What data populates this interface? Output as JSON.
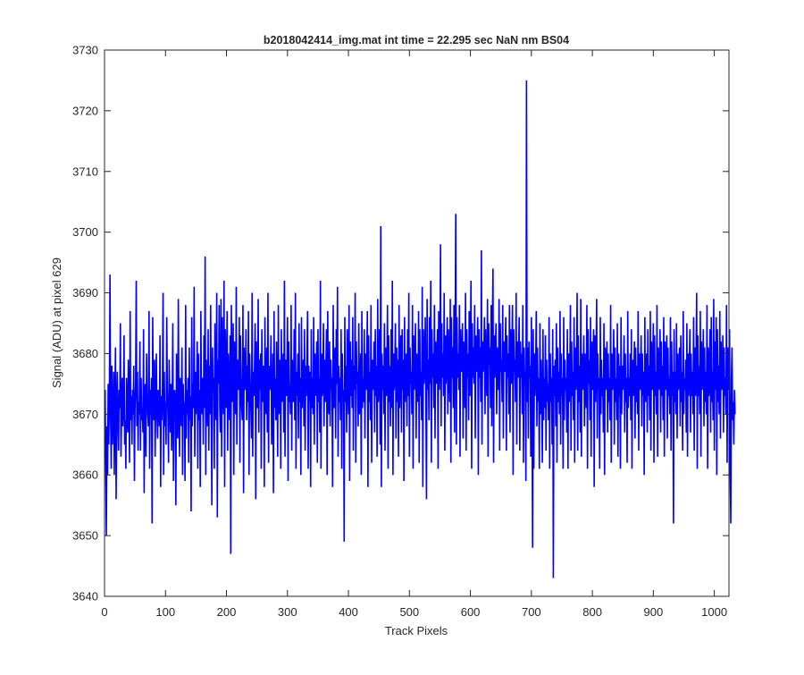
{
  "chart_data": {
    "type": "line",
    "title": "b2018042414_img.mat int time = 22.295 sec  NaN nm BS04",
    "xlabel": "Track Pixels",
    "ylabel": "Signal (ADU) at pixel 629",
    "xlim": [
      0,
      1024
    ],
    "ylim": [
      3640,
      3730
    ],
    "xticks": [
      0,
      100,
      200,
      300,
      400,
      500,
      600,
      700,
      800,
      900,
      1000
    ],
    "yticks": [
      3640,
      3650,
      3660,
      3670,
      3680,
      3690,
      3700,
      3710,
      3720,
      3730
    ],
    "grid": false,
    "line_color": "#0000ff",
    "series": [
      {
        "name": "",
        "x_start": 1,
        "x_step": 1,
        "values": [
          3674,
          3662,
          3650,
          3668,
          3660,
          3675,
          3665,
          3673,
          3693,
          3669,
          3661,
          3678,
          3665,
          3670,
          3677,
          3660,
          3672,
          3681,
          3656,
          3670,
          3677,
          3668,
          3664,
          3674,
          3671,
          3685,
          3663,
          3670,
          3676,
          3668,
          3671,
          3683,
          3665,
          3669,
          3661,
          3676,
          3672,
          3667,
          3679,
          3672,
          3662,
          3687,
          3669,
          3673,
          3665,
          3674,
          3670,
          3678,
          3659,
          3671,
          3675,
          3692,
          3668,
          3677,
          3664,
          3672,
          3670,
          3682,
          3664,
          3676,
          3669,
          3671,
          3667,
          3684,
          3657,
          3673,
          3675,
          3663,
          3680,
          3672,
          3670,
          3668,
          3687,
          3661,
          3674,
          3670,
          3676,
          3652,
          3686,
          3672,
          3669,
          3679,
          3663,
          3672,
          3680,
          3670,
          3666,
          3674,
          3671,
          3668,
          3683,
          3658,
          3673,
          3669,
          3675,
          3690,
          3660,
          3677,
          3668,
          3672,
          3665,
          3686,
          3674,
          3670,
          3662,
          3679,
          3672,
          3667,
          3675,
          3664,
          3671,
          3685,
          3659,
          3673,
          3674,
          3672,
          3655,
          3680,
          3670,
          3666,
          3689,
          3671,
          3663,
          3676,
          3672,
          3668,
          3681,
          3660,
          3675,
          3670,
          3672,
          3659,
          3688,
          3666,
          3674,
          3670,
          3676,
          3662,
          3681,
          3669,
          3673,
          3654,
          3686,
          3668,
          3675,
          3671,
          3691,
          3663,
          3677,
          3670,
          3673,
          3682,
          3661,
          3680,
          3669,
          3674,
          3658,
          3687,
          3672,
          3670,
          3676,
          3665,
          3683,
          3671,
          3696,
          3660,
          3679,
          3673,
          3668,
          3684,
          3664,
          3678,
          3670,
          3688,
          3672,
          3655,
          3681,
          3674,
          3676,
          3661,
          3685,
          3672,
          3669,
          3690,
          3653,
          3679,
          3675,
          3688,
          3671,
          3667,
          3689,
          3663,
          3686,
          3674,
          3670,
          3692,
          3658,
          3684,
          3677,
          3671,
          3687,
          3664,
          3680,
          3675,
          3669,
          3683,
          3647,
          3688,
          3676,
          3672,
          3685,
          3660,
          3682,
          3677,
          3670,
          3691,
          3665,
          3679,
          3676,
          3674,
          3686,
          3662,
          3683,
          3675,
          3671,
          3669,
          3688,
          3657,
          3681,
          3676,
          3674,
          3684,
          3669,
          3678,
          3672,
          3687,
          3660,
          3680,
          3675,
          3671,
          3666,
          3690,
          3663,
          3677,
          3673,
          3678,
          3685,
          3656,
          3682,
          3674,
          3671,
          3689,
          3667,
          3679,
          3674,
          3680,
          3661,
          3684,
          3672,
          3675,
          3678,
          3658,
          3686,
          3673,
          3670,
          3681,
          3667,
          3690,
          3662,
          3678,
          3674,
          3676,
          3683,
          3665,
          3672,
          3680,
          3657,
          3687,
          3671,
          3676,
          3669,
          3682,
          3674,
          3663,
          3688,
          3670,
          3676,
          3679,
          3661,
          3684,
          3672,
          3674,
          3680,
          3667,
          3692,
          3663,
          3679,
          3673,
          3676,
          3686,
          3659,
          3682,
          3672,
          3675,
          3670,
          3688,
          3664,
          3679,
          3674,
          3672,
          3684,
          3669,
          3690,
          3661,
          3677,
          3673,
          3680,
          3666,
          3685,
          3672,
          3676,
          3660,
          3686,
          3671,
          3675,
          3679,
          3668,
          3684,
          3664,
          3678,
          3673,
          3680,
          3687,
          3661,
          3678,
          3672,
          3677,
          3658,
          3684,
          3671,
          3676,
          3670,
          3686,
          3665,
          3680,
          3673,
          3676,
          3682,
          3662,
          3684,
          3672,
          3676,
          3667,
          3692,
          3661,
          3680,
          3673,
          3675,
          3685,
          3668,
          3679,
          3672,
          3677,
          3684,
          3660,
          3687,
          3673,
          3670,
          3682,
          3668,
          3679,
          3674,
          3676,
          3658,
          3688,
          3673,
          3671,
          3681,
          3666,
          3684,
          3675,
          3691,
          3663,
          3678,
          3672,
          3676,
          3669,
          3684,
          3661,
          3680,
          3673,
          3674,
          3649,
          3686,
          3672,
          3678,
          3667,
          3684,
          3676,
          3670,
          3688,
          3659,
          3682,
          3673,
          3679,
          3671,
          3686,
          3664,
          3678,
          3674,
          3690,
          3662,
          3682,
          3675,
          3677,
          3668,
          3685,
          3670,
          3673,
          3680,
          3660,
          3687,
          3671,
          3676,
          3672,
          3684,
          3666,
          3680,
          3674,
          3678,
          3687,
          3658,
          3683,
          3672,
          3677,
          3669,
          3688,
          3662,
          3679,
          3674,
          3676,
          3682,
          3667,
          3684,
          3673,
          3678,
          3663,
          3689,
          3672,
          3676,
          3684,
          3665,
          3701,
          3658,
          3680,
          3674,
          3678,
          3670,
          3685,
          3664,
          3681,
          3673,
          3676,
          3688,
          3661,
          3683,
          3672,
          3678,
          3668,
          3684,
          3671,
          3692,
          3660,
          3680,
          3674,
          3677,
          3685,
          3666,
          3681,
          3672,
          3679,
          3663,
          3688,
          3671,
          3676,
          3683,
          3667,
          3684,
          3674,
          3679,
          3659,
          3686,
          3672,
          3676,
          3680,
          3668,
          3684,
          3673,
          3690,
          3663,
          3681,
          3675,
          3677,
          3670,
          3688,
          3661,
          3683,
          3674,
          3678,
          3685,
          3666,
          3680,
          3676,
          3672,
          3687,
          3662,
          3684,
          3673,
          3677,
          3669,
          3691,
          3658,
          3684,
          3675,
          3678,
          3686,
          3672,
          3656,
          3689,
          3674,
          3679,
          3669,
          3686,
          3675,
          3692,
          3662,
          3684,
          3676,
          3680,
          3671,
          3688,
          3666,
          3682,
          3675,
          3679,
          3684,
          3661,
          3687,
          3674,
          3678,
          3698,
          3668,
          3685,
          3676,
          3680,
          3673,
          3690,
          3664,
          3683,
          3675,
          3679,
          3686,
          3670,
          3684,
          3677,
          3672,
          3689,
          3662,
          3686,
          3676,
          3681,
          3671,
          3688,
          3667,
          3684,
          3703,
          3665,
          3686,
          3676,
          3680,
          3674,
          3688,
          3663,
          3684,
          3677,
          3679,
          3685,
          3666,
          3682,
          3677,
          3671,
          3690,
          3664,
          3684,
          3676,
          3680,
          3669,
          3687,
          3673,
          3682,
          3692,
          3661,
          3685,
          3676,
          3681,
          3675,
          3688,
          3666,
          3683,
          3677,
          3679,
          3686,
          3660,
          3684,
          3676,
          3681,
          3672,
          3697,
          3665,
          3682,
          3677,
          3680,
          3686,
          3670,
          3684,
          3676,
          3673,
          3689,
          3663,
          3685,
          3678,
          3681,
          3671,
          3688,
          3668,
          3684,
          3694,
          3662,
          3683,
          3676,
          3681,
          3685,
          3670,
          3681,
          3677,
          3674,
          3689,
          3664,
          3685,
          3677,
          3679,
          3672,
          3688,
          3666,
          3682,
          3677,
          3680,
          3686,
          3664,
          3683,
          3676,
          3680,
          3670,
          3688,
          3667,
          3684,
          3675,
          3680,
          3688,
          3660,
          3684,
          3677,
          3679,
          3672,
          3690,
          3665,
          3682,
          3676,
          3680,
          3686,
          3664,
          3682,
          3676,
          3680,
          3670,
          3688,
          3662,
          3681,
          3675,
          3677,
          3659,
          3725,
          3672,
          3681,
          3666,
          3682,
          3676,
          3678,
          3663,
          3686,
          3672,
          3648,
          3684,
          3661,
          3680,
          3673,
          3677,
          3687,
          3668,
          3681,
          3672,
          3676,
          3661,
          3685,
          3670,
          3679,
          3673,
          3662,
          3684,
          3669,
          3676,
          3671,
          3683,
          3664,
          3679,
          3672,
          3675,
          3669,
          3686,
          3661,
          3680,
          3672,
          3676,
          3665,
          3684,
          3643,
          3678,
          3673,
          3679,
          3668,
          3685,
          3662,
          3681,
          3672,
          3677,
          3670,
          3687,
          3665,
          3680,
          3673,
          3676,
          3661,
          3686,
          3669,
          3679,
          3674,
          3676,
          3667,
          3684,
          3661,
          3680,
          3672,
          3676,
          3688,
          3664,
          3682,
          3673,
          3677,
          3669,
          3686,
          3662,
          3681,
          3674,
          3678,
          3690,
          3664,
          3683,
          3672,
          3678,
          3667,
          3689,
          3663,
          3680,
          3674,
          3676,
          3683,
          3668,
          3680,
          3673,
          3671,
          3688,
          3661,
          3684,
          3675,
          3679,
          3669,
          3686,
          3663,
          3682,
          3674,
          3679,
          3684,
          3658,
          3683,
          3672,
          3678,
          3689,
          3666,
          3680,
          3674,
          3676,
          3661,
          3686,
          3670,
          3679,
          3673,
          3676,
          3667,
          3685,
          3660,
          3681,
          3674,
          3678,
          3682,
          3667,
          3680,
          3672,
          3676,
          3669,
          3688,
          3662,
          3680,
          3674,
          3677,
          3684,
          3665,
          3681,
          3672,
          3676,
          3669,
          3685,
          3663,
          3680,
          3673,
          3678,
          3661,
          3686,
          3670,
          3678,
          3674,
          3677,
          3683,
          3667,
          3680,
          3672,
          3676,
          3662,
          3687,
          3671,
          3676,
          3673,
          3680,
          3669,
          3684,
          3661,
          3679,
          3673,
          3676,
          3682,
          3666,
          3681,
          3672,
          3678,
          3670,
          3687,
          3664,
          3680,
          3674,
          3676,
          3683,
          3668,
          3680,
          3673,
          3677,
          3660,
          3686,
          3672,
          3676,
          3680,
          3667,
          3684,
          3673,
          3678,
          3669,
          3687,
          3664,
          3682,
          3674,
          3677,
          3685,
          3662,
          3683,
          3673,
          3677,
          3670,
          3688,
          3663,
          3681,
          3674,
          3676,
          3684,
          3667,
          3682,
          3673,
          3678,
          3669,
          3686,
          3663,
          3682,
          3674,
          3678,
          3683,
          3666,
          3681,
          3673,
          3676,
          3670,
          3686,
          3664,
          3682,
          3673,
          3677,
          3652,
          3684,
          3672,
          3677,
          3670,
          3685,
          3666,
          3680,
          3674,
          3677,
          3681,
          3668,
          3683,
          3672,
          3677,
          3664,
          3687,
          3670,
          3676,
          3674,
          3679,
          3667,
          3685,
          3663,
          3680,
          3673,
          3678,
          3684,
          3667,
          3680,
          3673,
          3677,
          3670,
          3686,
          3664,
          3681,
          3673,
          3678,
          3690,
          3661,
          3683,
          3673,
          3678,
          3670,
          3687,
          3663,
          3682,
          3674,
          3677,
          3684,
          3668,
          3681,
          3672,
          3677,
          3670,
          3688,
          3661,
          3681,
          3673,
          3676,
          3684,
          3667,
          3686,
          3672,
          3677,
          3669,
          3689,
          3664,
          3682,
          3674,
          3686,
          3660,
          3684,
          3672,
          3678,
          3670,
          3687,
          3666,
          3682,
          3674,
          3677,
          3683,
          3667,
          3681,
          3673,
          3676,
          3670,
          3688,
          3662,
          3681,
          3674,
          3675,
          3684,
          3660,
          3652,
          3676,
          3681,
          3669,
          3672,
          3665,
          3674,
          3670
        ]
      }
    ]
  }
}
